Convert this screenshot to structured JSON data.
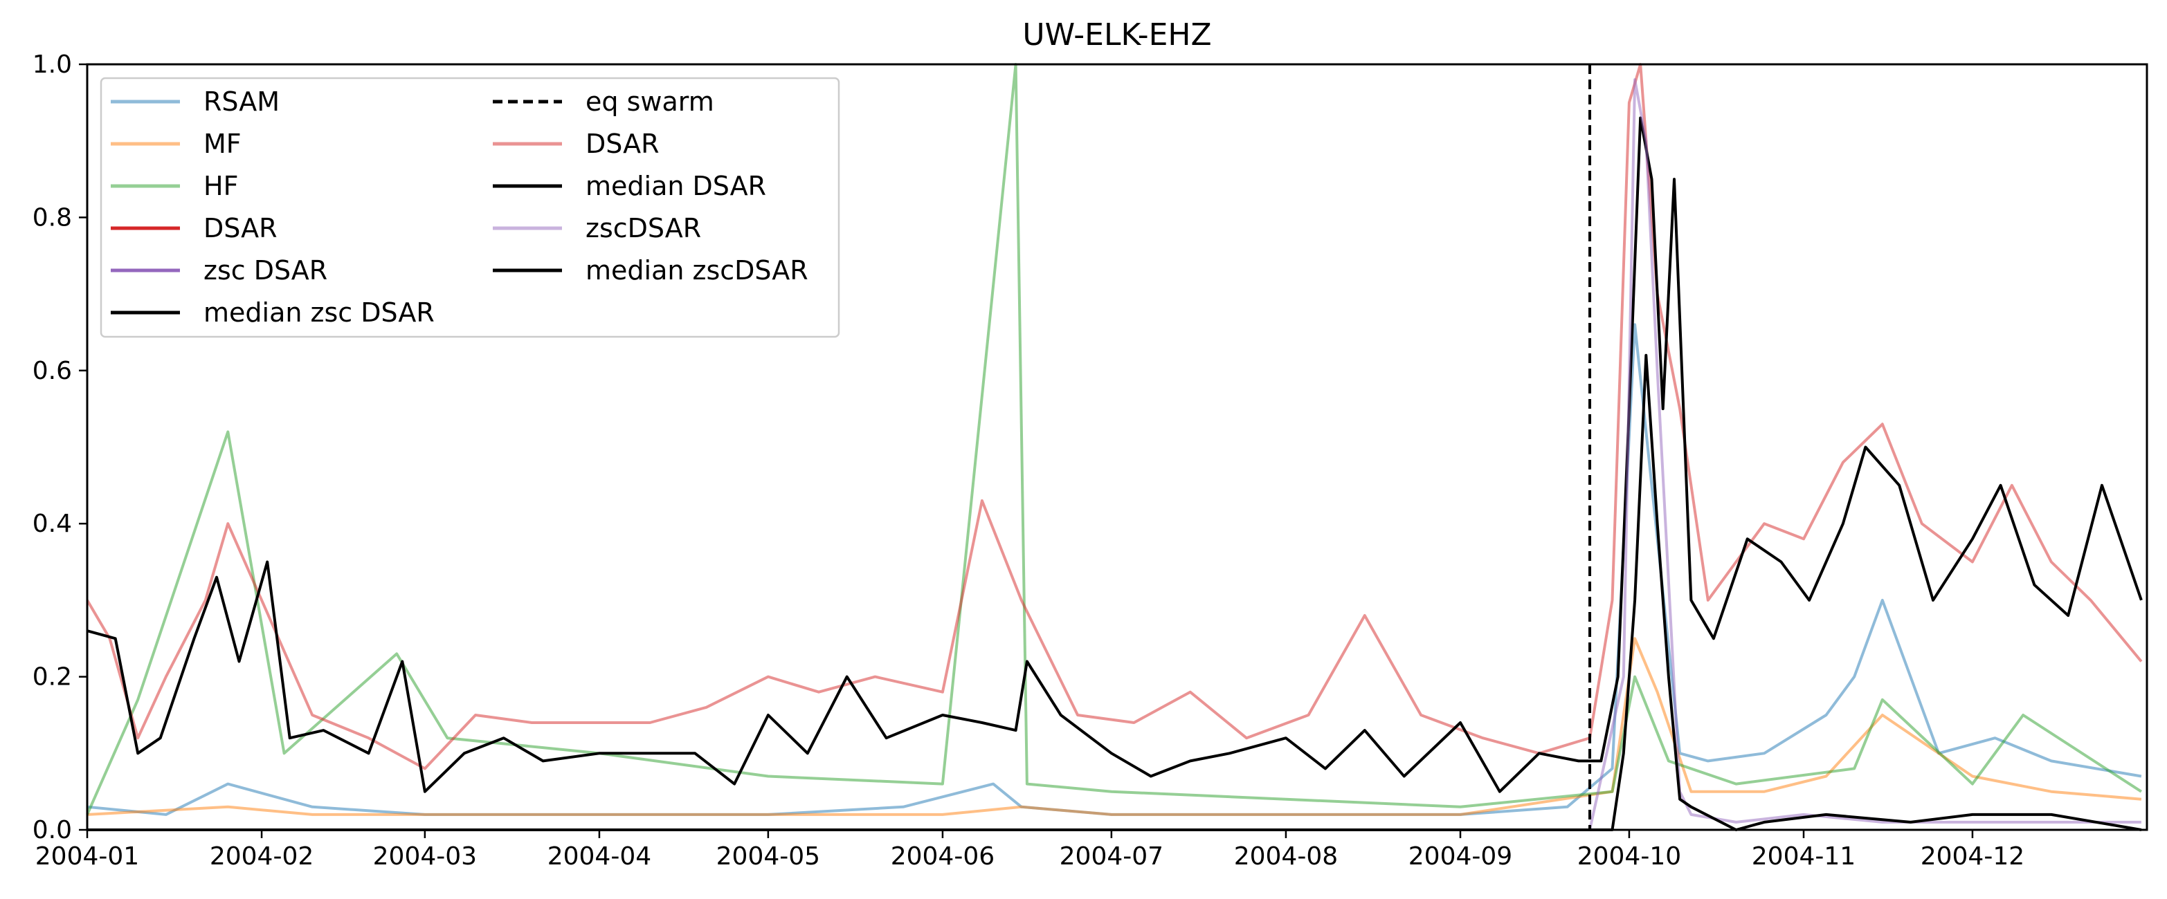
{
  "chart_data": {
    "type": "line",
    "title": "UW-ELK-EHZ",
    "xlabel": "",
    "ylabel": "",
    "x_range": [
      "2004-01-01",
      "2004-12-31"
    ],
    "ylim": [
      0,
      1.0
    ],
    "x_ticks": [
      "2004-01",
      "2004-02",
      "2004-03",
      "2004-04",
      "2004-05",
      "2004-06",
      "2004-07",
      "2004-08",
      "2004-09",
      "2004-10",
      "2004-11",
      "2004-12"
    ],
    "y_ticks": [
      "0.0",
      "0.2",
      "0.4",
      "0.6",
      "0.8",
      "1.0"
    ],
    "grid": false,
    "legend_position": "top-left",
    "vline": {
      "name": "eq swarm",
      "x": "2004-09-24",
      "style": "dashed",
      "color": "#000000"
    },
    "series": [
      {
        "name": "RSAM",
        "color": "#1f77b4",
        "opacity": 0.5,
        "x": [
          "2004-01-01",
          "2004-01-15",
          "2004-01-26",
          "2004-02-10",
          "2004-03-01",
          "2004-03-20",
          "2004-04-10",
          "2004-05-01",
          "2004-05-25",
          "2004-06-10",
          "2004-06-15",
          "2004-07-01",
          "2004-08-01",
          "2004-09-01",
          "2004-09-20",
          "2004-09-28",
          "2004-10-02",
          "2004-10-05",
          "2004-10-10",
          "2004-10-15",
          "2004-10-25",
          "2004-11-05",
          "2004-11-10",
          "2004-11-15",
          "2004-11-25",
          "2004-12-05",
          "2004-12-15",
          "2004-12-31"
        ],
        "values": [
          0.03,
          0.02,
          0.06,
          0.03,
          0.02,
          0.02,
          0.02,
          0.02,
          0.03,
          0.06,
          0.03,
          0.02,
          0.02,
          0.02,
          0.03,
          0.08,
          0.66,
          0.45,
          0.1,
          0.09,
          0.1,
          0.15,
          0.2,
          0.3,
          0.1,
          0.12,
          0.09,
          0.07
        ]
      },
      {
        "name": "MF",
        "color": "#ff7f0e",
        "opacity": 0.5,
        "x": [
          "2004-01-01",
          "2004-01-26",
          "2004-02-10",
          "2004-03-01",
          "2004-04-01",
          "2004-05-01",
          "2004-06-01",
          "2004-06-15",
          "2004-07-01",
          "2004-08-01",
          "2004-09-01",
          "2004-09-28",
          "2004-10-02",
          "2004-10-06",
          "2004-10-12",
          "2004-10-25",
          "2004-11-05",
          "2004-11-15",
          "2004-12-01",
          "2004-12-15",
          "2004-12-31"
        ],
        "values": [
          0.02,
          0.03,
          0.02,
          0.02,
          0.02,
          0.02,
          0.02,
          0.03,
          0.02,
          0.02,
          0.02,
          0.05,
          0.25,
          0.18,
          0.05,
          0.05,
          0.07,
          0.15,
          0.07,
          0.05,
          0.04
        ]
      },
      {
        "name": "HF",
        "color": "#2ca02c",
        "opacity": 0.5,
        "x": [
          "2004-01-01",
          "2004-01-10",
          "2004-01-26",
          "2004-02-05",
          "2004-02-25",
          "2004-03-05",
          "2004-04-01",
          "2004-05-01",
          "2004-06-01",
          "2004-06-14",
          "2004-06-16",
          "2004-07-01",
          "2004-08-01",
          "2004-09-01",
          "2004-09-28",
          "2004-10-02",
          "2004-10-08",
          "2004-10-20",
          "2004-11-10",
          "2004-11-15",
          "2004-12-01",
          "2004-12-10",
          "2004-12-31"
        ],
        "values": [
          0.02,
          0.17,
          0.52,
          0.1,
          0.23,
          0.12,
          0.1,
          0.07,
          0.06,
          1.0,
          0.06,
          0.05,
          0.04,
          0.03,
          0.05,
          0.2,
          0.09,
          0.06,
          0.08,
          0.17,
          0.06,
          0.15,
          0.05
        ]
      },
      {
        "name": "DSAR",
        "color": "#d62728",
        "opacity": 1.0,
        "x": [],
        "values": []
      },
      {
        "name": "zsc DSAR",
        "color": "#9467bd",
        "opacity": 1.0,
        "x": [],
        "values": []
      },
      {
        "name": "median zsc DSAR",
        "color": "#000000",
        "opacity": 1.0,
        "x": [],
        "values": []
      }
    ],
    "right_series": [
      {
        "name": "eq swarm",
        "color": "#000000",
        "dashed": true
      },
      {
        "name": "DSAR",
        "color": "#d62728",
        "opacity": 0.5,
        "x": [
          "2004-01-01",
          "2004-01-05",
          "2004-01-10",
          "2004-01-15",
          "2004-01-22",
          "2004-01-26",
          "2004-02-01",
          "2004-02-10",
          "2004-02-20",
          "2004-03-01",
          "2004-03-10",
          "2004-03-20",
          "2004-04-01",
          "2004-04-10",
          "2004-04-20",
          "2004-05-01",
          "2004-05-10",
          "2004-05-20",
          "2004-06-01",
          "2004-06-08",
          "2004-06-15",
          "2004-06-25",
          "2004-07-05",
          "2004-07-15",
          "2004-07-25",
          "2004-08-05",
          "2004-08-15",
          "2004-08-25",
          "2004-09-05",
          "2004-09-15",
          "2004-09-24",
          "2004-09-28",
          "2004-10-01",
          "2004-10-03",
          "2004-10-06",
          "2004-10-10",
          "2004-10-15",
          "2004-10-20",
          "2004-10-25",
          "2004-11-01",
          "2004-11-08",
          "2004-11-15",
          "2004-11-22",
          "2004-12-01",
          "2004-12-08",
          "2004-12-15",
          "2004-12-22",
          "2004-12-31"
        ],
        "values": [
          0.3,
          0.25,
          0.12,
          0.2,
          0.3,
          0.4,
          0.3,
          0.15,
          0.12,
          0.08,
          0.15,
          0.14,
          0.14,
          0.14,
          0.16,
          0.2,
          0.18,
          0.2,
          0.18,
          0.43,
          0.3,
          0.15,
          0.14,
          0.18,
          0.12,
          0.15,
          0.28,
          0.15,
          0.12,
          0.1,
          0.12,
          0.3,
          0.95,
          1.0,
          0.7,
          0.55,
          0.3,
          0.35,
          0.4,
          0.38,
          0.48,
          0.53,
          0.4,
          0.35,
          0.45,
          0.35,
          0.3,
          0.22
        ]
      },
      {
        "name": "median DSAR",
        "color": "#000000",
        "opacity": 1.0,
        "x": [
          "2004-01-01",
          "2004-01-06",
          "2004-01-10",
          "2004-01-14",
          "2004-01-20",
          "2004-01-24",
          "2004-01-28",
          "2004-02-02",
          "2004-02-06",
          "2004-02-12",
          "2004-02-20",
          "2004-02-26",
          "2004-03-01",
          "2004-03-08",
          "2004-03-15",
          "2004-03-22",
          "2004-04-01",
          "2004-04-10",
          "2004-04-18",
          "2004-04-25",
          "2004-05-01",
          "2004-05-08",
          "2004-05-15",
          "2004-05-22",
          "2004-06-01",
          "2004-06-08",
          "2004-06-14",
          "2004-06-16",
          "2004-06-22",
          "2004-07-01",
          "2004-07-08",
          "2004-07-15",
          "2004-07-22",
          "2004-08-01",
          "2004-08-08",
          "2004-08-15",
          "2004-08-22",
          "2004-09-01",
          "2004-09-08",
          "2004-09-15",
          "2004-09-22",
          "2004-09-26",
          "2004-09-29",
          "2004-10-01",
          "2004-10-03",
          "2004-10-05",
          "2004-10-07",
          "2004-10-09",
          "2004-10-12",
          "2004-10-16",
          "2004-10-22",
          "2004-10-28",
          "2004-11-02",
          "2004-11-08",
          "2004-11-12",
          "2004-11-18",
          "2004-11-24",
          "2004-12-01",
          "2004-12-06",
          "2004-12-12",
          "2004-12-18",
          "2004-12-24",
          "2004-12-31"
        ],
        "values": [
          0.26,
          0.25,
          0.1,
          0.12,
          0.25,
          0.33,
          0.22,
          0.35,
          0.12,
          0.13,
          0.1,
          0.22,
          0.05,
          0.1,
          0.12,
          0.09,
          0.1,
          0.1,
          0.1,
          0.06,
          0.15,
          0.1,
          0.2,
          0.12,
          0.15,
          0.14,
          0.13,
          0.22,
          0.15,
          0.1,
          0.07,
          0.09,
          0.1,
          0.12,
          0.08,
          0.13,
          0.07,
          0.14,
          0.05,
          0.1,
          0.09,
          0.09,
          0.2,
          0.55,
          0.93,
          0.85,
          0.55,
          0.85,
          0.3,
          0.25,
          0.38,
          0.35,
          0.3,
          0.4,
          0.5,
          0.45,
          0.3,
          0.38,
          0.45,
          0.32,
          0.28,
          0.45,
          0.3
        ]
      },
      {
        "name": "zscDSAR",
        "color": "#9467bd",
        "opacity": 0.5,
        "x": [
          "2004-01-01",
          "2004-09-24",
          "2004-09-30",
          "2004-10-02",
          "2004-10-04",
          "2004-10-06",
          "2004-10-10",
          "2004-10-12",
          "2004-10-20",
          "2004-11-01",
          "2004-11-15",
          "2004-12-01",
          "2004-12-31"
        ],
        "values": [
          0.0,
          0.0,
          0.2,
          0.98,
          0.9,
          0.6,
          0.05,
          0.02,
          0.01,
          0.02,
          0.01,
          0.01,
          0.01
        ]
      },
      {
        "name": "median zscDSAR",
        "color": "#000000",
        "opacity": 1.0,
        "x": [
          "2004-01-01",
          "2004-09-28",
          "2004-09-30",
          "2004-10-02",
          "2004-10-04",
          "2004-10-06",
          "2004-10-08",
          "2004-10-10",
          "2004-10-12",
          "2004-10-20",
          "2004-10-25",
          "2004-11-05",
          "2004-11-20",
          "2004-12-01",
          "2004-12-15",
          "2004-12-31"
        ],
        "values": [
          0.0,
          0.0,
          0.1,
          0.3,
          0.62,
          0.4,
          0.2,
          0.04,
          0.03,
          0.0,
          0.01,
          0.02,
          0.01,
          0.02,
          0.02,
          0.0
        ]
      }
    ]
  }
}
